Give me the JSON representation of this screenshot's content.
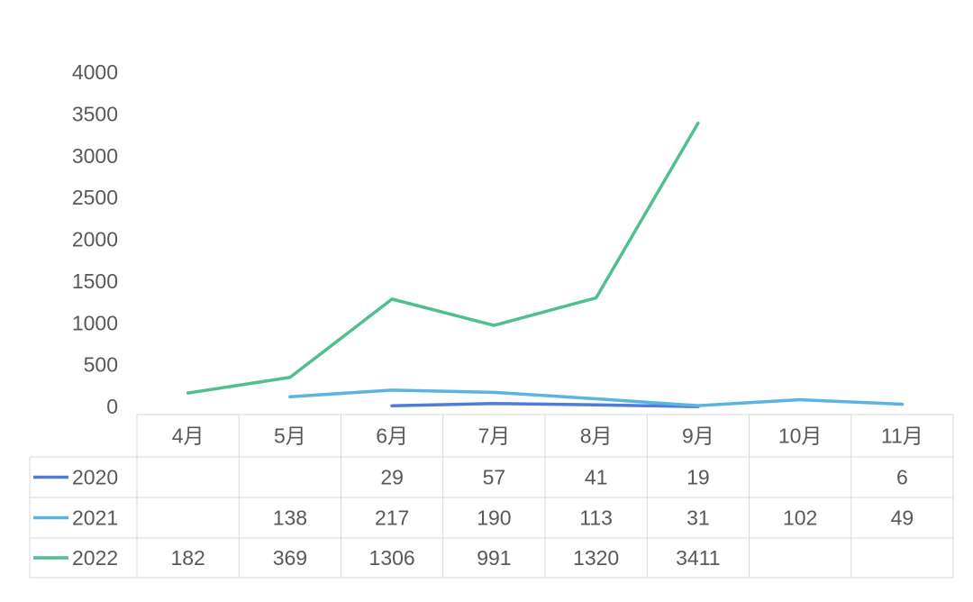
{
  "chart_data": {
    "type": "line",
    "categories": [
      "4月",
      "5月",
      "6月",
      "7月",
      "8月",
      "9月",
      "10月",
      "11月"
    ],
    "series": [
      {
        "name": "2020",
        "color": "#4f7bd9",
        "values": [
          null,
          null,
          29,
          57,
          41,
          19,
          null,
          6
        ]
      },
      {
        "name": "2021",
        "color": "#5ab4e2",
        "values": [
          null,
          138,
          217,
          190,
          113,
          31,
          102,
          49
        ]
      },
      {
        "name": "2022",
        "color": "#4fc08d",
        "values": [
          182,
          369,
          1306,
          991,
          1320,
          3411,
          null,
          null
        ]
      }
    ],
    "ylim": [
      0,
      4000
    ],
    "yticks": [
      0,
      500,
      1000,
      1500,
      2000,
      2500,
      3000,
      3500,
      4000
    ],
    "data_table": true
  }
}
